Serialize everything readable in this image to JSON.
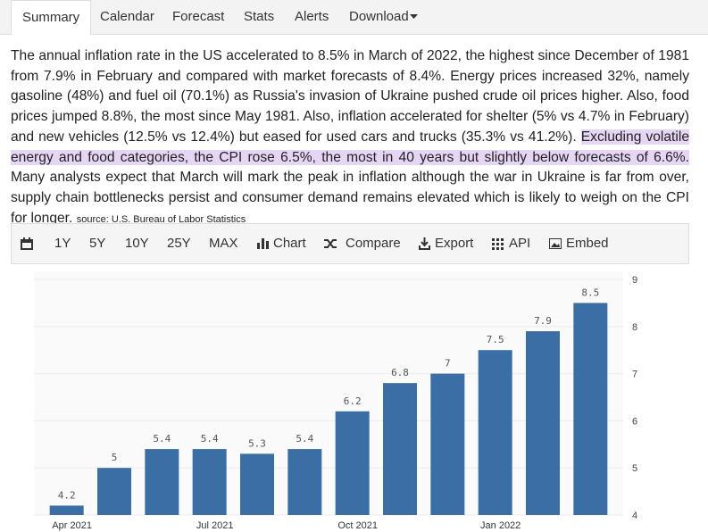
{
  "tabs": [
    "Summary",
    "Calendar",
    "Forecast",
    "Stats",
    "Alerts",
    "Download"
  ],
  "summary": {
    "text_before": "The annual inflation rate in the US accelerated to 8.5% in March of 2022, the highest since December of 1981 from 7.9% in February and compared with market forecasts of 8.4%. Energy prices increased 32%, namely gasoline (48%) and fuel oil (70.1%) as Russia's invasion of Ukraine pushed crude oil prices higher. Also, food prices jumped 8.8%, the most since May 1981. Also, inflation accelerated for shelter (5% vs 4.7% in February) and new vehicles (12.5% vs 12.4%) but eased for used cars and trucks (35.3% vs 41.2%).",
    "highlight": "Excluding volatile energy and food categories, the CPI rose 6.5%, the most in 40 years but slightly below forecasts of 6.6%.",
    "text_after": "Many analysts expect that March will mark the peak in inflation although the war in Ukraine is far from over, supply chain bottlenecks persist and consumer demand remains elevated which is likely to weigh on the CPI for longer.",
    "source": "source: U.S. Bureau of Labor Statistics"
  },
  "toolbar": {
    "ranges": [
      "1Y",
      "5Y",
      "10Y",
      "25Y",
      "MAX"
    ],
    "actions": [
      "Chart",
      "Compare",
      "Export",
      "API",
      "Embed"
    ]
  },
  "chart_data": {
    "type": "bar",
    "categories": [
      "Apr 2021",
      null,
      null,
      "Jul 2021",
      null,
      null,
      "Oct 2021",
      null,
      null,
      "Jan 2022",
      null,
      null
    ],
    "values": [
      4.2,
      5,
      5.4,
      5.4,
      5.3,
      5.4,
      6.2,
      6.8,
      7,
      7.5,
      7.9,
      8.5
    ],
    "color": "#3a6ea5",
    "ylim": [
      4,
      9
    ],
    "yticks": [
      4,
      5,
      6,
      7,
      8,
      9
    ],
    "grid": true
  }
}
